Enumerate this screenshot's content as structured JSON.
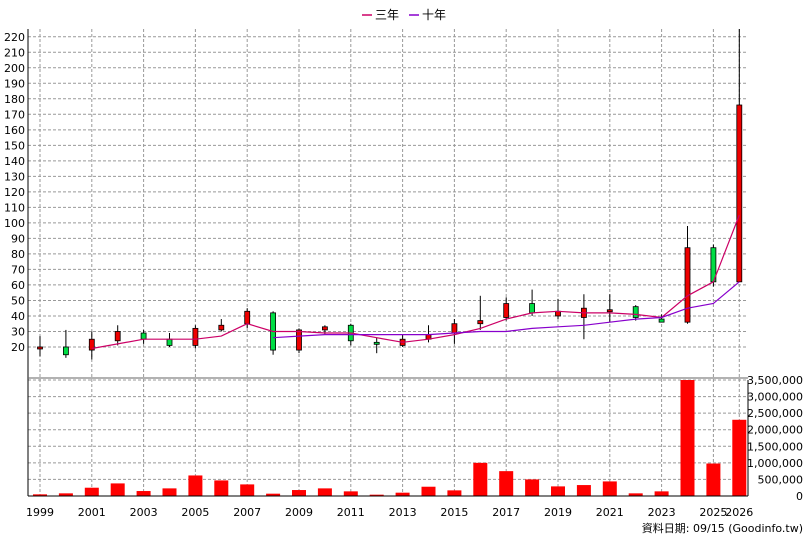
{
  "chart_data": {
    "type": "candlestick+bar",
    "legend": [
      {
        "name": "三年",
        "color": "#cc0066"
      },
      {
        "name": "十年",
        "color": "#8800cc"
      }
    ],
    "years": [
      "1999",
      "2000",
      "2001",
      "2002",
      "2003",
      "2004",
      "2005",
      "2006",
      "2007",
      "2008",
      "2009",
      "2010",
      "2011",
      "2012",
      "2013",
      "2014",
      "2015",
      "2016",
      "2017",
      "2018",
      "2019",
      "2020",
      "2021",
      "2022",
      "2023",
      "2024",
      "2025",
      "2026"
    ],
    "x_tick_labels": [
      "1999",
      "2001",
      "2003",
      "2005",
      "2007",
      "2009",
      "2011",
      "2013",
      "2015",
      "2017",
      "2019",
      "2021",
      "2023",
      "2025",
      "2026"
    ],
    "price": {
      "ylim": [
        0,
        225
      ],
      "ticks": [
        20,
        30,
        40,
        50,
        60,
        70,
        80,
        90,
        100,
        110,
        120,
        130,
        140,
        150,
        160,
        170,
        180,
        190,
        200,
        210,
        220
      ],
      "candles": [
        {
          "o": 20,
          "h": 27,
          "l": 14,
          "c": 20
        },
        {
          "o": 20,
          "h": 31,
          "l": 13,
          "c": 15
        },
        {
          "o": 18,
          "h": 30,
          "l": 12,
          "c": 25
        },
        {
          "o": 24,
          "h": 34,
          "l": 21,
          "c": 30
        },
        {
          "o": 29,
          "h": 31,
          "l": 22,
          "c": 25
        },
        {
          "o": 25,
          "h": 29,
          "l": 20,
          "c": 21
        },
        {
          "o": 21,
          "h": 34,
          "l": 19,
          "c": 32
        },
        {
          "o": 31,
          "h": 38,
          "l": 30,
          "c": 34
        },
        {
          "o": 35,
          "h": 45,
          "l": 32,
          "c": 43
        },
        {
          "o": 42,
          "h": 43,
          "l": 15,
          "c": 18
        },
        {
          "o": 18,
          "h": 32,
          "l": 16,
          "c": 31
        },
        {
          "o": 31,
          "h": 34,
          "l": 28,
          "c": 33
        },
        {
          "o": 34,
          "h": 35,
          "l": 21,
          "c": 24
        },
        {
          "o": 23,
          "h": 26,
          "l": 16,
          "c": 22
        },
        {
          "o": 21,
          "h": 28,
          "l": 20,
          "c": 25
        },
        {
          "o": 25,
          "h": 34,
          "l": 23,
          "c": 28
        },
        {
          "o": 29,
          "h": 38,
          "l": 22,
          "c": 35
        },
        {
          "o": 35,
          "h": 53,
          "l": 31,
          "c": 37
        },
        {
          "o": 39,
          "h": 52,
          "l": 37,
          "c": 48
        },
        {
          "o": 48,
          "h": 57,
          "l": 40,
          "c": 42
        },
        {
          "o": 40,
          "h": 51,
          "l": 38,
          "c": 43
        },
        {
          "o": 39,
          "h": 54,
          "l": 25,
          "c": 45
        },
        {
          "o": 43,
          "h": 54,
          "l": 36,
          "c": 44
        },
        {
          "o": 46,
          "h": 47,
          "l": 37,
          "c": 39
        },
        {
          "o": 38,
          "h": 41,
          "l": 36,
          "c": 36
        },
        {
          "o": 36,
          "h": 98,
          "l": 35,
          "c": 84
        },
        {
          "o": 84,
          "h": 86,
          "l": 59,
          "c": 62
        },
        {
          "o": 62,
          "h": 225,
          "l": 62,
          "c": 176
        }
      ],
      "series": [
        {
          "name": "三年",
          "values": [
            null,
            null,
            19,
            22,
            25,
            25,
            25,
            27,
            35,
            30,
            30,
            29,
            29,
            26,
            23,
            25,
            28,
            32,
            38,
            42,
            43,
            42,
            42,
            41,
            39,
            53,
            62,
            105
          ]
        },
        {
          "name": "十年",
          "values": [
            null,
            null,
            null,
            null,
            null,
            null,
            null,
            null,
            null,
            26,
            27,
            28,
            28,
            28,
            28,
            28,
            29,
            30,
            30,
            32,
            33,
            34,
            36,
            38,
            39,
            45,
            48,
            62
          ]
        }
      ]
    },
    "volume": {
      "ylim": [
        0,
        3500000
      ],
      "ticks": [
        0,
        500000,
        1000000,
        1500000,
        2000000,
        2500000,
        3000000,
        3500000
      ],
      "tick_labels": [
        "0",
        "500,000",
        "1,000,000",
        "1,500,000",
        "2,000,000",
        "2,500,000",
        "3,000,000",
        "3,500,000"
      ],
      "values": [
        50000,
        80000,
        250000,
        380000,
        150000,
        230000,
        620000,
        470000,
        350000,
        70000,
        180000,
        230000,
        140000,
        40000,
        100000,
        280000,
        170000,
        1000000,
        750000,
        500000,
        290000,
        330000,
        440000,
        80000,
        140000,
        3500000,
        980000,
        2300000
      ],
      "color": "#ff0000"
    }
  },
  "footer": {
    "date_label": "資料日期: 09/15  (Goodinfo.tw)"
  }
}
